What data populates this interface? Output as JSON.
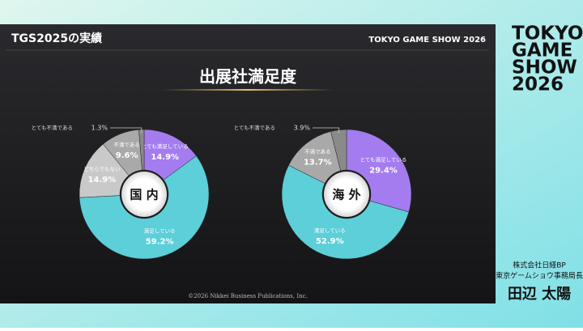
{
  "slide": {
    "header": "TGS2025の実績",
    "logo": "TOKYO GAME SHOW 2026",
    "title": "出展社満足度",
    "footer": "©2026 Nikkei Business Publications, Inc."
  },
  "event_logo": [
    "TOKYO",
    "GAME",
    "SHOW",
    "2026"
  ],
  "speaker": {
    "affiliation": [
      "株式会社日経BP",
      "東京ゲームショウ事務局長"
    ],
    "name": "田辺 太陽"
  },
  "chart_data": [
    {
      "type": "pie",
      "title": "国 内",
      "categories": [
        "とても満足している",
        "満足している",
        "どちらでもない",
        "不満である",
        "とても不満である"
      ],
      "values": [
        14.9,
        59.2,
        14.9,
        9.6,
        1.3
      ],
      "value_labels": [
        "14.9%",
        "59.2%",
        "14.9%",
        "9.6%",
        "1.3%"
      ],
      "colors": [
        "#a47cf0",
        "#5ccfd9",
        "#c9c9c9",
        "#a9a9a9",
        "#8a8a8a"
      ]
    },
    {
      "type": "pie",
      "title": "海 外",
      "categories": [
        "とても満足している",
        "満足している",
        "不満である",
        "とても不満である"
      ],
      "values": [
        29.4,
        52.9,
        13.7,
        3.9
      ],
      "value_labels": [
        "29.4%",
        "52.9%",
        "13.7%",
        "3.9%"
      ],
      "colors": [
        "#a47cf0",
        "#5ccfd9",
        "#a9a9a9",
        "#8a8a8a"
      ]
    }
  ]
}
